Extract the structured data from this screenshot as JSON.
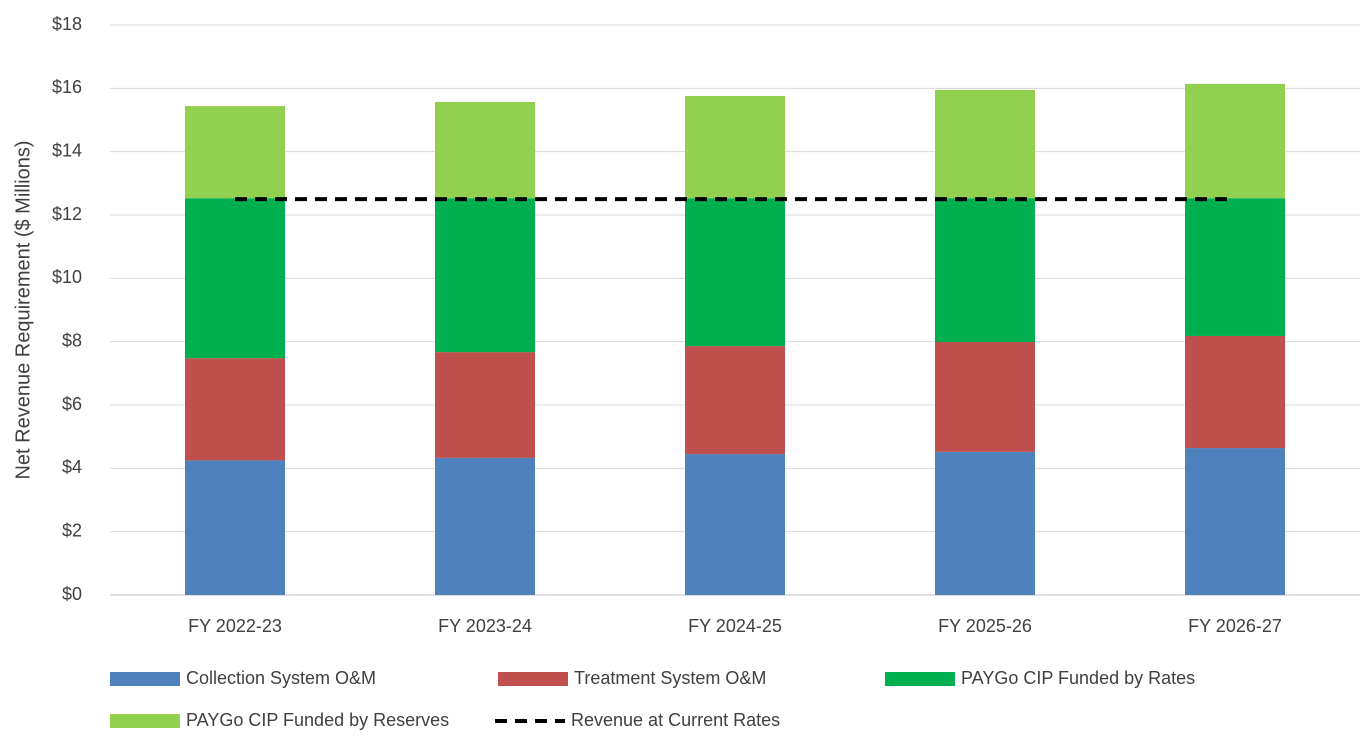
{
  "chart_data": {
    "type": "bar",
    "stacked": true,
    "y_label": "Net Revenue Requirement ($ Millions)",
    "categories": [
      "FY 2022-23",
      "FY 2023-24",
      "FY 2024-25",
      "FY 2025-26",
      "FY 2026-27"
    ],
    "series": [
      {
        "name": "Collection System O&M",
        "color": "#4f81bd",
        "values": [
          4.25,
          4.33,
          4.45,
          4.52,
          4.64
        ]
      },
      {
        "name": "Treatment System O&M",
        "color": "#c0504d",
        "values": [
          3.23,
          3.34,
          3.41,
          3.47,
          3.54
        ]
      },
      {
        "name": "PAYGo CIP Funded by Rates",
        "color": "#00b050",
        "values": [
          5.05,
          4.86,
          4.67,
          4.54,
          4.35
        ]
      },
      {
        "name": "PAYGo CIP Funded by Reserves",
        "color": "#92d050",
        "values": [
          2.91,
          3.04,
          3.23,
          3.42,
          3.61
        ]
      },
      {
        "name": "Revenue at Current Rates",
        "color": "#000000",
        "type": "line",
        "dashed": true,
        "values": [
          12.5,
          12.5,
          12.5,
          12.5,
          12.5
        ]
      }
    ],
    "ylim": [
      0,
      18
    ],
    "yticks": [
      {
        "value": 0,
        "label": "$0"
      },
      {
        "value": 2,
        "label": "$2"
      },
      {
        "value": 4,
        "label": "$4"
      },
      {
        "value": 6,
        "label": "$6"
      },
      {
        "value": 8,
        "label": "$8"
      },
      {
        "value": 10,
        "label": "$10"
      },
      {
        "value": 12,
        "label": "$12"
      },
      {
        "value": 14,
        "label": "$14"
      },
      {
        "value": 16,
        "label": "$16"
      },
      {
        "value": 18,
        "label": "$18"
      }
    ],
    "grid": true,
    "legend": "bottom"
  }
}
